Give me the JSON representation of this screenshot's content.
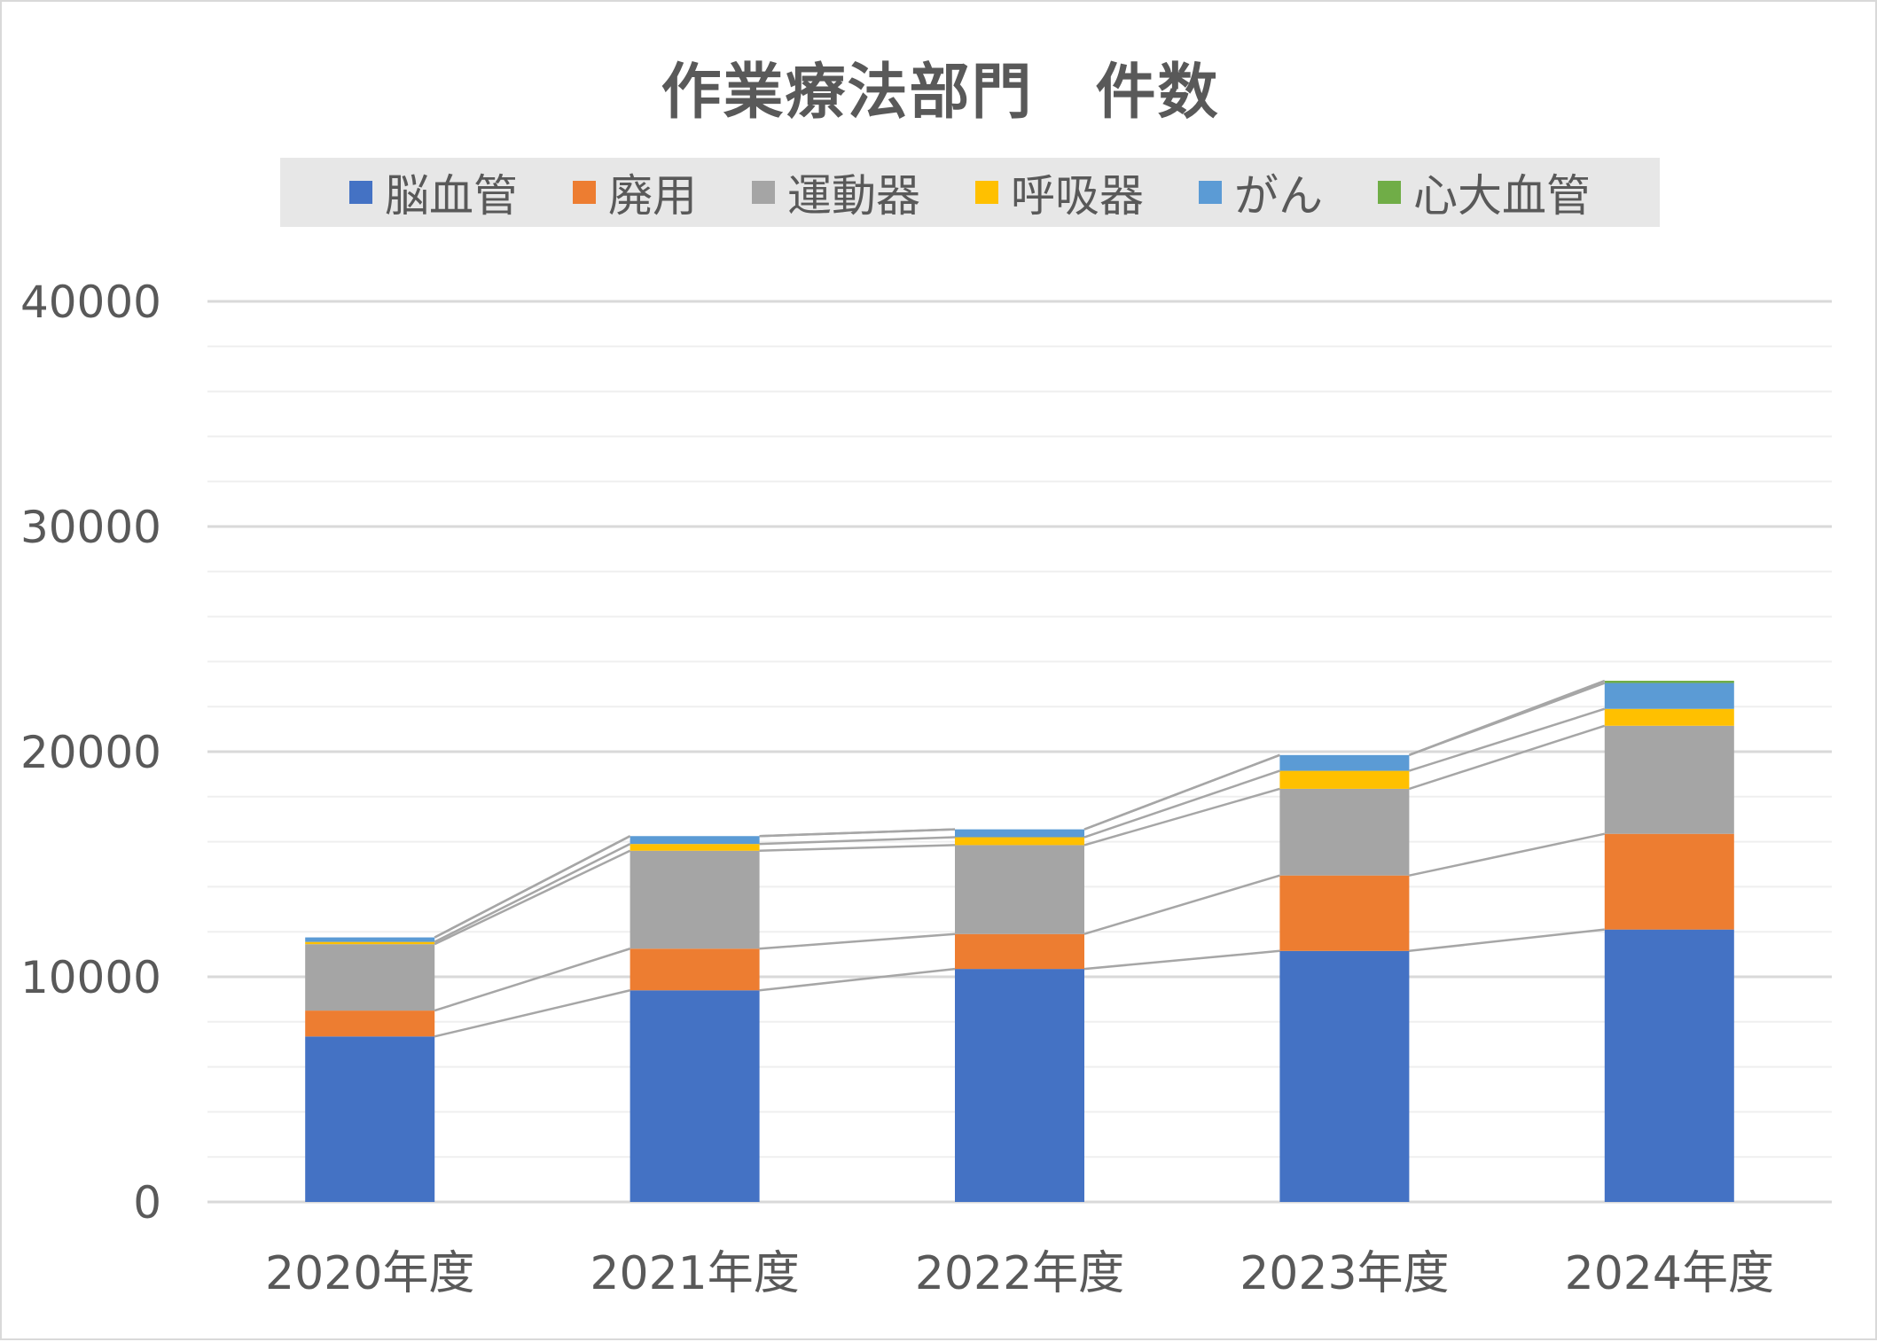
{
  "chart_data": {
    "type": "bar",
    "stacked": true,
    "title": "作業療法部門　件数",
    "categories": [
      "2020年度",
      "2021年度",
      "2022年度",
      "2023年度",
      "2024年度"
    ],
    "series": [
      {
        "name": "脳血管",
        "color": "#4472c4",
        "values": [
          7350,
          9400,
          10350,
          11150,
          12100
        ]
      },
      {
        "name": "廃用",
        "color": "#ed7d31",
        "values": [
          1150,
          1850,
          1550,
          3350,
          4250
        ]
      },
      {
        "name": "運動器",
        "color": "#a5a5a5",
        "values": [
          2950,
          4350,
          3950,
          3850,
          4800
        ]
      },
      {
        "name": "呼吸器",
        "color": "#ffc000",
        "values": [
          100,
          300,
          350,
          800,
          750
        ]
      },
      {
        "name": "がん",
        "color": "#5b9bd5",
        "values": [
          200,
          350,
          350,
          700,
          1150
        ]
      },
      {
        "name": "心大血管",
        "color": "#70ad47",
        "values": [
          0,
          0,
          0,
          0,
          100
        ]
      }
    ],
    "ylim": [
      0,
      40000
    ],
    "yticks": [
      0,
      10000,
      20000,
      30000,
      40000
    ],
    "ytick_labels": [
      "0",
      "10000",
      "20000",
      "30000",
      "40000"
    ],
    "minor_grid_step": 2000,
    "grid": true,
    "series_lines": true,
    "legend_position": "top",
    "xlabel": "",
    "ylabel": ""
  }
}
